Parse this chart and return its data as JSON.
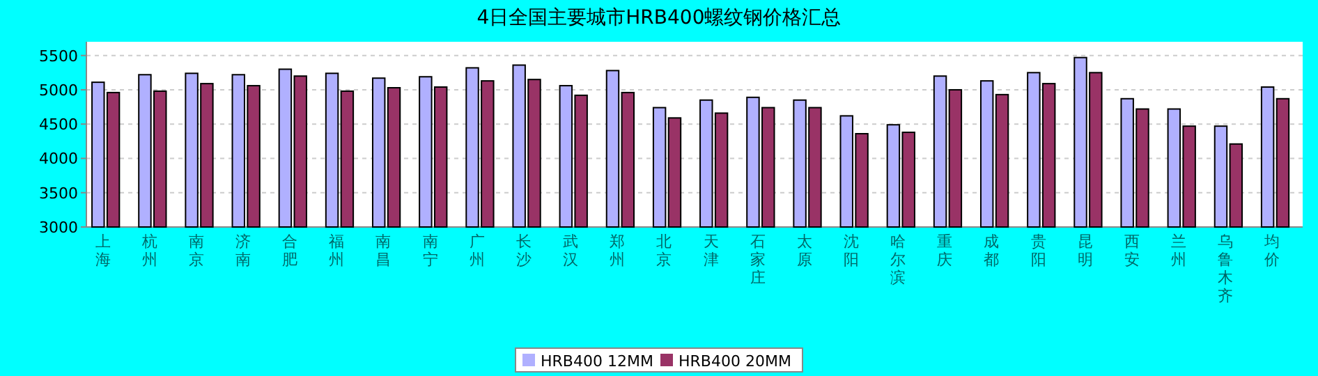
{
  "chart_data": {
    "type": "bar",
    "title": "4日全国主要城市HRB400螺纹钢价格汇总",
    "categories": [
      "上海",
      "杭州",
      "南京",
      "济南",
      "合肥",
      "福州",
      "南昌",
      "南宁",
      "广州",
      "长沙",
      "武汉",
      "郑州",
      "北京",
      "天津",
      "石家庄",
      "太原",
      "沈阳",
      "哈尔滨",
      "重庆",
      "成都",
      "贵阳",
      "昆明",
      "西安",
      "兰州",
      "乌鲁木齐",
      "均价"
    ],
    "series": [
      {
        "name": "HRB400 12MM",
        "color": "#b0b0ff",
        "values": [
          5110,
          5220,
          5240,
          5220,
          5300,
          5240,
          5170,
          5190,
          5320,
          5360,
          5060,
          5280,
          4740,
          4850,
          4890,
          4850,
          4620,
          4490,
          5200,
          5130,
          5250,
          5470,
          4870,
          4720,
          4470,
          5040
        ]
      },
      {
        "name": "HRB400 20MM",
        "color": "#993366",
        "values": [
          4960,
          4980,
          5090,
          5060,
          5200,
          4980,
          5030,
          5040,
          5130,
          5150,
          4920,
          4960,
          4590,
          4660,
          4740,
          4740,
          4360,
          4380,
          5000,
          4930,
          5090,
          5250,
          4720,
          4470,
          4210,
          4870
        ]
      }
    ],
    "ylim": [
      3000,
      5700
    ],
    "yticks": [
      3000,
      3500,
      4000,
      4500,
      5000,
      5500
    ],
    "grid": "y",
    "legend": "bottom"
  }
}
